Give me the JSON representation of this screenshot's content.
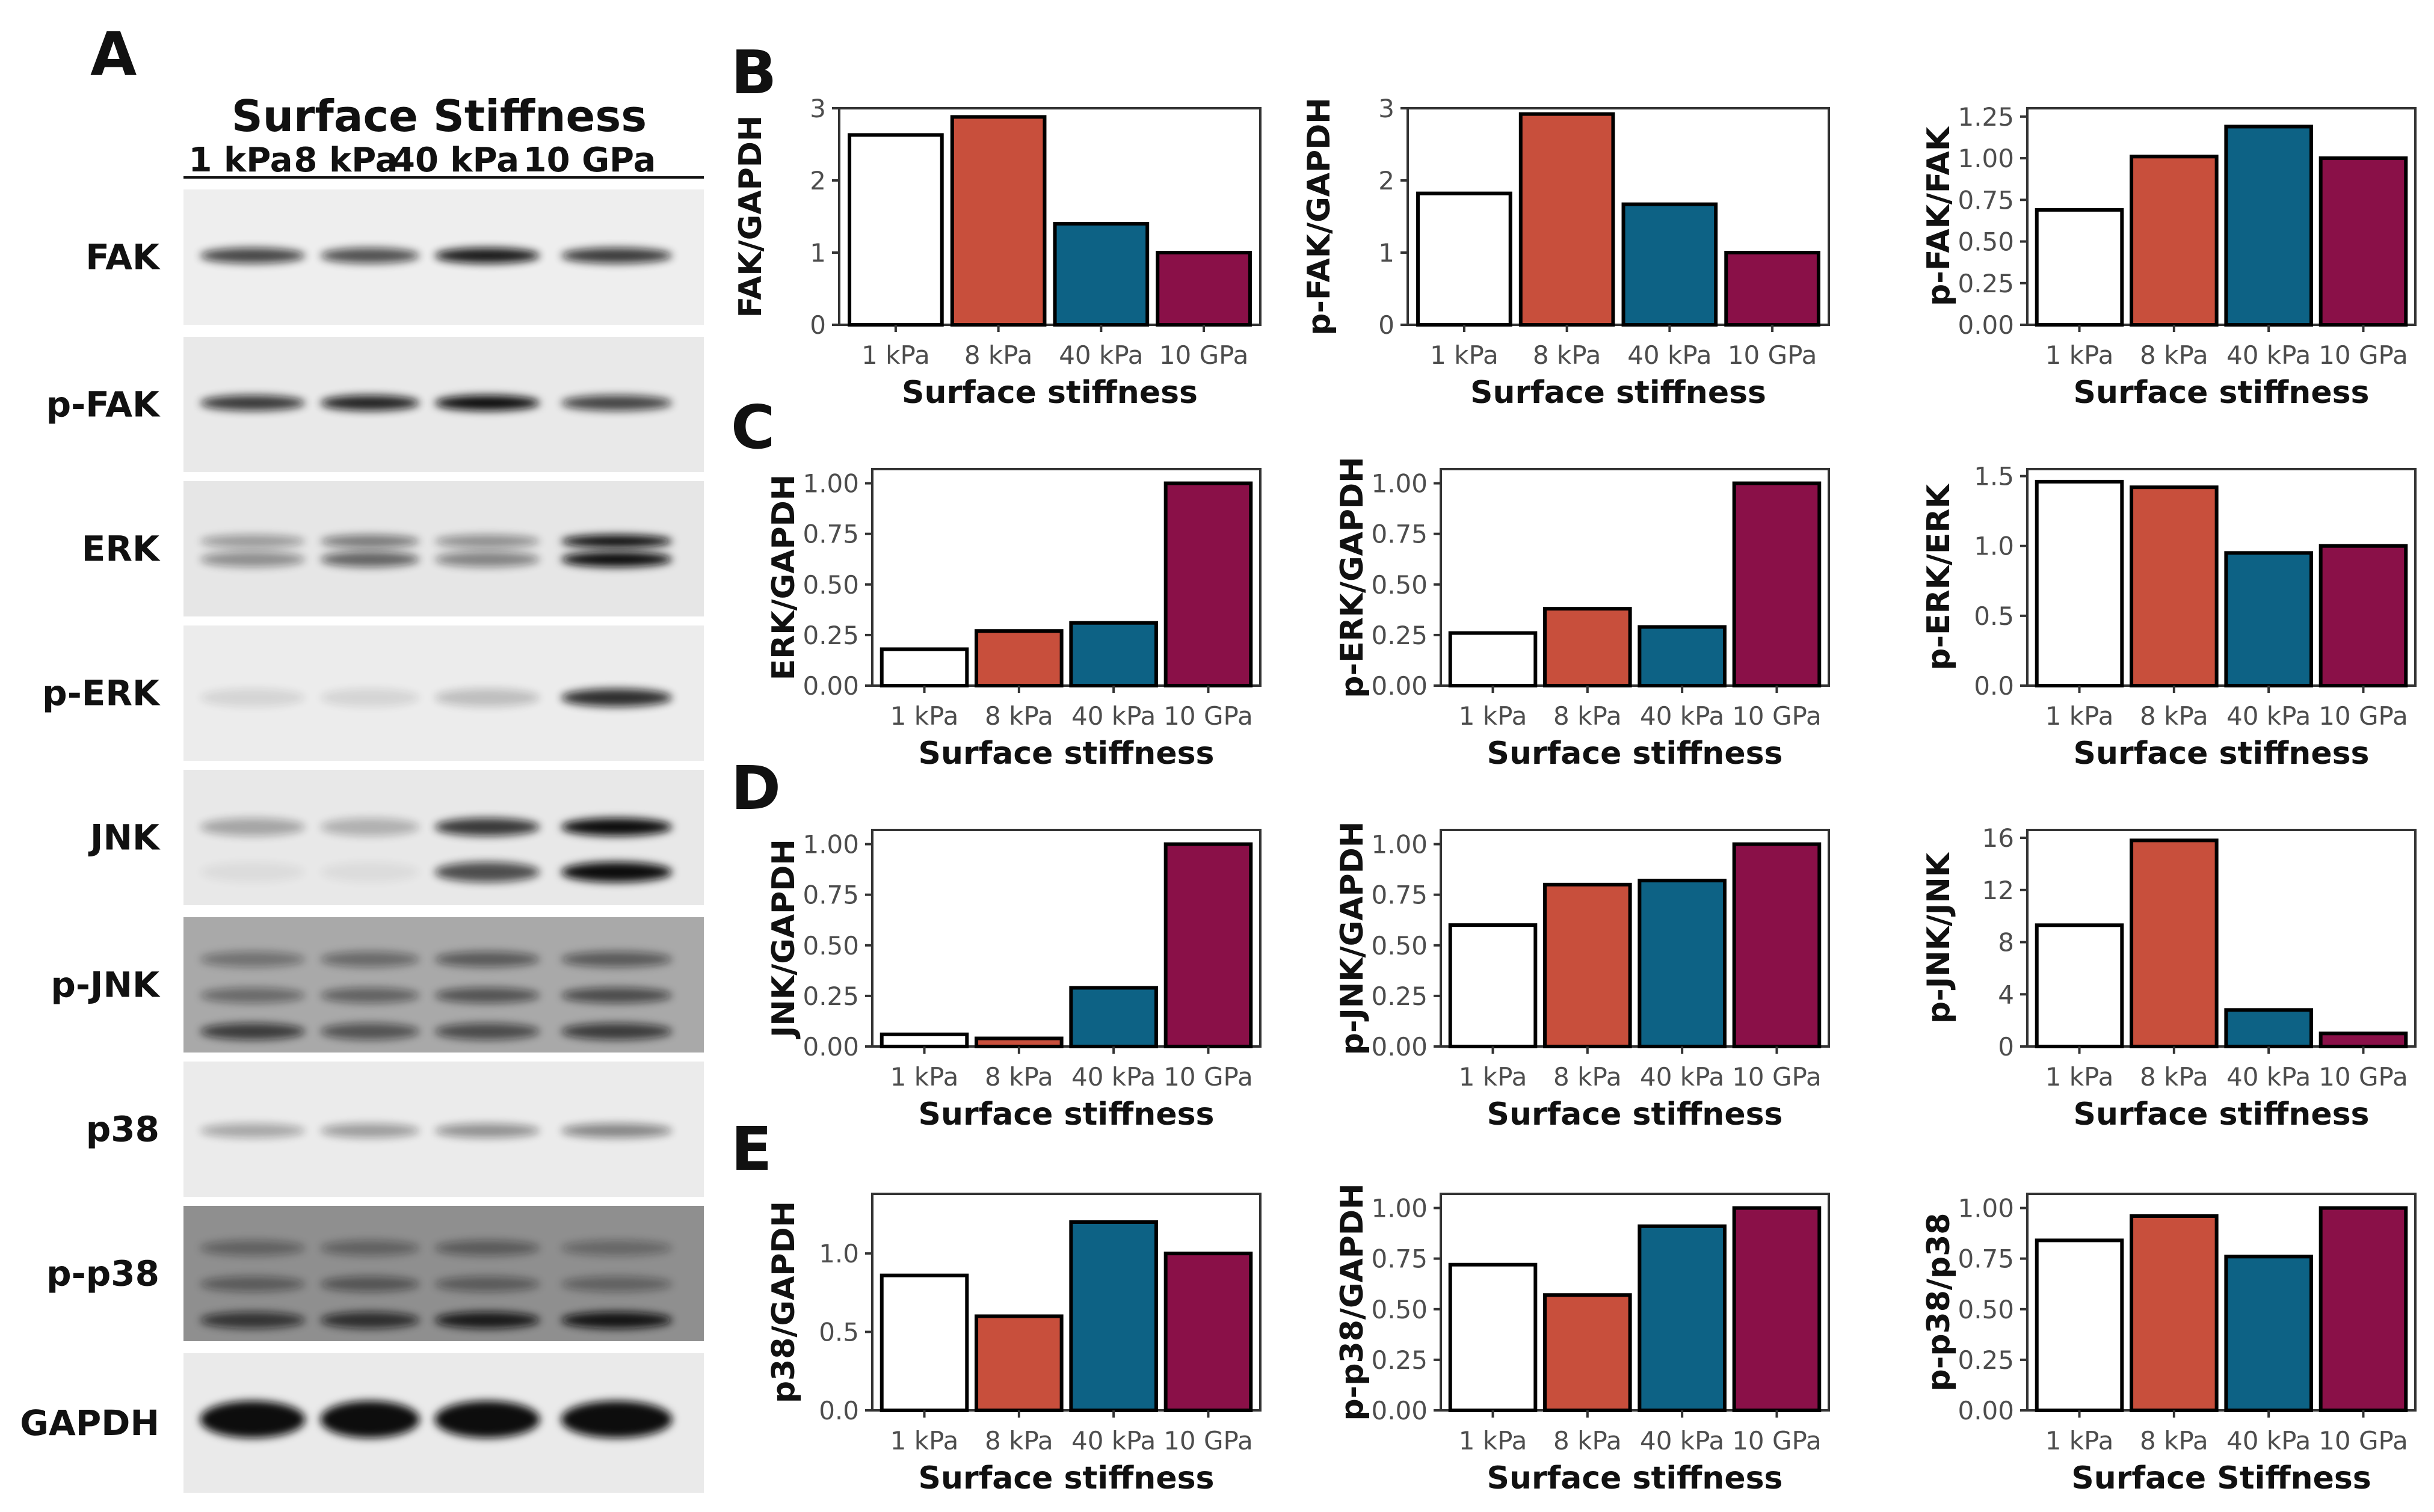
{
  "colors": {
    "c1": "#ffffff",
    "c8": "#c84f3c",
    "c40": "#0d6285",
    "c10": "#8a1048",
    "frame": "#333333",
    "tick": "#4d4d4d"
  },
  "blot": {
    "panel_label": "A",
    "title": "Surface Stiffness",
    "lanes": [
      "1 kPa",
      "8 kPa",
      "40 kPa",
      "10 GPa"
    ],
    "rows": [
      {
        "label": "FAK"
      },
      {
        "label": "p-FAK"
      },
      {
        "label": "ERK"
      },
      {
        "label": "p-ERK"
      },
      {
        "label": "JNK"
      },
      {
        "label": "p-JNK"
      },
      {
        "label": "p38"
      },
      {
        "label": "p-p38"
      },
      {
        "label": "GAPDH"
      }
    ]
  },
  "chart_data": [
    {
      "type": "bar",
      "panel": "B",
      "title": "",
      "categories": [
        "1 kPa",
        "8 kPa",
        "40 kPa",
        "10 GPa"
      ],
      "values": [
        2.63,
        2.88,
        1.4,
        1.0
      ],
      "ylabel": "FAK/GAPDH",
      "xlabel": "Surface stiffness",
      "ylim": [
        0,
        3
      ],
      "yticks": [
        "0",
        "1",
        "2",
        "3"
      ]
    },
    {
      "type": "bar",
      "title": "",
      "categories": [
        "1 kPa",
        "8 kPa",
        "40 kPa",
        "10 GPa"
      ],
      "values": [
        1.82,
        2.92,
        1.67,
        1.0
      ],
      "ylabel": "p-FAK/GAPDH",
      "xlabel": "Surface stiffness",
      "ylim": [
        0,
        3
      ],
      "yticks": [
        "0",
        "1",
        "2",
        "3"
      ]
    },
    {
      "type": "bar",
      "title": "",
      "categories": [
        "1 kPa",
        "8 kPa",
        "40 kPa",
        "10 GPa"
      ],
      "values": [
        0.69,
        1.01,
        1.19,
        1.0
      ],
      "ylabel": "p-FAK/FAK",
      "xlabel": "Surface stiffness",
      "ylim": [
        0,
        1.3
      ],
      "yticks": [
        "0.00",
        "0.25",
        "0.50",
        "0.75",
        "1.00",
        "1.25"
      ]
    },
    {
      "type": "bar",
      "panel": "C",
      "title": "",
      "categories": [
        "1 kPa",
        "8 kPa",
        "40 kPa",
        "10 GPa"
      ],
      "values": [
        0.18,
        0.27,
        0.31,
        1.0
      ],
      "ylabel": "ERK/GAPDH",
      "xlabel": "Surface stiffness",
      "ylim": [
        0,
        1.07
      ],
      "yticks": [
        "0.00",
        "0.25",
        "0.50",
        "0.75",
        "1.00"
      ]
    },
    {
      "type": "bar",
      "title": "",
      "categories": [
        "1 kPa",
        "8 kPa",
        "40 kPa",
        "10 GPa"
      ],
      "values": [
        0.26,
        0.38,
        0.29,
        1.0
      ],
      "ylabel": "p-ERK/GAPDH",
      "xlabel": "Surface stiffness",
      "ylim": [
        0,
        1.07
      ],
      "yticks": [
        "0.00",
        "0.25",
        "0.50",
        "0.75",
        "1.00"
      ]
    },
    {
      "type": "bar",
      "title": "",
      "categories": [
        "1 kPa",
        "8 kPa",
        "40 kPa",
        "10 GPa"
      ],
      "values": [
        1.46,
        1.42,
        0.95,
        1.0
      ],
      "ylabel": "p-ERK/ERK",
      "xlabel": "Surface stiffness",
      "ylim": [
        0,
        1.55
      ],
      "yticks": [
        "0.0",
        "0.5",
        "1.0",
        "1.5"
      ]
    },
    {
      "type": "bar",
      "panel": "D",
      "title": "",
      "categories": [
        "1 kPa",
        "8 kPa",
        "40 kPa",
        "10 GPa"
      ],
      "values": [
        0.06,
        0.04,
        0.29,
        1.0
      ],
      "ylabel": "JNK/GAPDH",
      "xlabel": "Surface stiffness",
      "ylim": [
        0,
        1.07
      ],
      "yticks": [
        "0.00",
        "0.25",
        "0.50",
        "0.75",
        "1.00"
      ]
    },
    {
      "type": "bar",
      "title": "",
      "categories": [
        "1 kPa",
        "8 kPa",
        "40 kPa",
        "10 GPa"
      ],
      "values": [
        0.6,
        0.8,
        0.82,
        1.0
      ],
      "ylabel": "p-JNK/GAPDH",
      "xlabel": "Surface stiffness",
      "ylim": [
        0,
        1.07
      ],
      "yticks": [
        "0.00",
        "0.25",
        "0.50",
        "0.75",
        "1.00"
      ]
    },
    {
      "type": "bar",
      "title": "",
      "categories": [
        "1 kPa",
        "8 kPa",
        "40 kPa",
        "10 GPa"
      ],
      "values": [
        9.3,
        15.8,
        2.8,
        1.0
      ],
      "ylabel": "p-JNK/JNK",
      "xlabel": "Surface stiffness",
      "ylim": [
        0,
        16.6
      ],
      "yticks": [
        "0",
        "4",
        "8",
        "12",
        "16"
      ]
    },
    {
      "type": "bar",
      "panel": "E",
      "title": "",
      "categories": [
        "1 kPa",
        "8 kPa",
        "40 kPa",
        "10 GPa"
      ],
      "values": [
        0.86,
        0.6,
        1.2,
        1.0
      ],
      "ylabel": "p38/GAPDH",
      "xlabel": "Surface stiffness",
      "ylim": [
        0,
        1.38
      ],
      "yticks": [
        "0.0",
        "0.5",
        "1.0"
      ]
    },
    {
      "type": "bar",
      "title": "",
      "categories": [
        "1 kPa",
        "8 kPa",
        "40 kPa",
        "10 GPa"
      ],
      "values": [
        0.72,
        0.57,
        0.91,
        1.0
      ],
      "ylabel": "p-p38/GAPDH",
      "xlabel": "Surface stiffness",
      "ylim": [
        0,
        1.07
      ],
      "yticks": [
        "0.00",
        "0.25",
        "0.50",
        "0.75",
        "1.00"
      ]
    },
    {
      "type": "bar",
      "title": "",
      "categories": [
        "1 kPa",
        "8 kPa",
        "40 kPa",
        "10 GPa"
      ],
      "values": [
        0.84,
        0.96,
        0.76,
        1.0
      ],
      "ylabel": "p-p38/p38",
      "xlabel": "Surface Stiffness",
      "ylim": [
        0,
        1.07
      ],
      "yticks": [
        "0.00",
        "0.25",
        "0.50",
        "0.75",
        "1.00"
      ]
    }
  ]
}
